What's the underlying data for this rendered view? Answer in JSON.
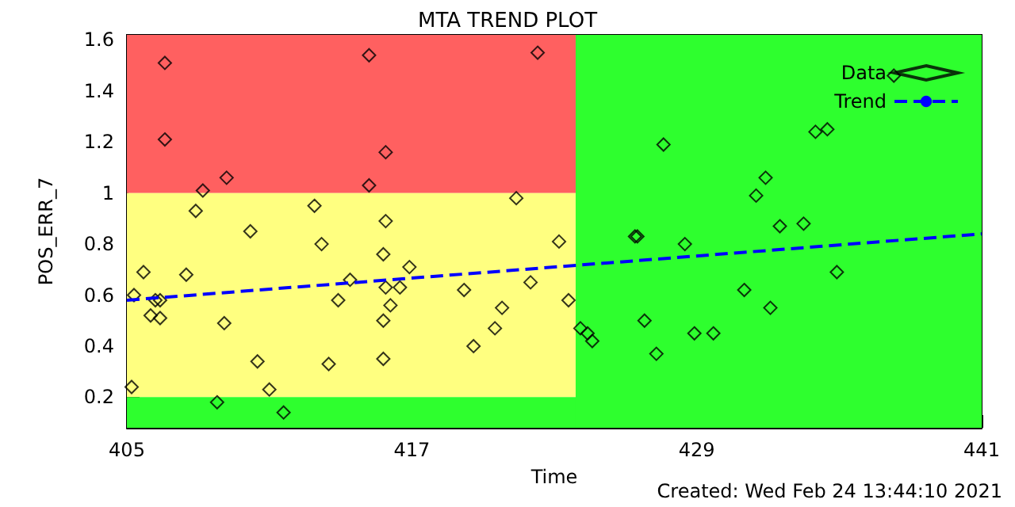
{
  "chart_data": {
    "type": "scatter",
    "title": "MTA TREND PLOT",
    "xlabel": "Time",
    "ylabel": "POS_ERR_7",
    "annotations": [
      "Created: Wed Feb 24 13:44:10 2021"
    ],
    "xlim": [
      405,
      441
    ],
    "xticks": [
      405,
      417,
      429,
      441
    ],
    "ylim": [
      0.08,
      1.62
    ],
    "yticks": [
      0.2,
      0.4,
      0.6,
      0.8,
      1.0,
      1.2,
      1.4,
      1.6
    ],
    "grid": false,
    "legend": "top right",
    "bands": [
      {
        "axis": "y",
        "from": 1.0,
        "to": 1.62,
        "color": "#ff6060"
      },
      {
        "axis": "y",
        "from": 0.2,
        "to": 1.0,
        "color": "#ffff80"
      },
      {
        "axis": "y",
        "from": 0.08,
        "to": 0.2,
        "color": "#2eff2e"
      },
      {
        "axis": "x",
        "from": 423.9,
        "to": 441,
        "color": "#2eff2e"
      }
    ],
    "series": [
      {
        "name": "Data",
        "marker": "diamond",
        "color": "#000000",
        "x": [
          406.6,
          406.6,
          408.2,
          409.2,
          407.9,
          412.9,
          415.2,
          415.9,
          415.2,
          415.9,
          422.3,
          421.4,
          410.2,
          413.2,
          423.2,
          415.8,
          405.7,
          407.5,
          416.9,
          414.4,
          415.9,
          416.5,
          419.2,
          422.0,
          405.3,
          406.2,
          406.4,
          413.9,
          416.1,
          423.6,
          420.8,
          406.0,
          406.4,
          415.8,
          409.1,
          420.5,
          419.6,
          410.5,
          413.5,
          415.8,
          424.1,
          405.2,
          411.0,
          408.8,
          411.6,
          437.3,
          427.6,
          434.0,
          434.5,
          431.9,
          431.5,
          432.5,
          433.5,
          426.4,
          426.5,
          428.5,
          434.9,
          431.0,
          432.1,
          424.4,
          424.6,
          426.8,
          428.9,
          429.7,
          427.3
        ],
        "values": [
          1.51,
          1.21,
          1.01,
          1.06,
          0.93,
          0.95,
          1.54,
          1.16,
          1.03,
          0.89,
          1.55,
          0.98,
          0.85,
          0.8,
          0.81,
          0.76,
          0.69,
          0.68,
          0.71,
          0.66,
          0.63,
          0.63,
          0.62,
          0.65,
          0.6,
          0.58,
          0.58,
          0.58,
          0.56,
          0.58,
          0.55,
          0.52,
          0.51,
          0.5,
          0.49,
          0.47,
          0.4,
          0.34,
          0.33,
          0.35,
          0.47,
          0.24,
          0.23,
          0.18,
          0.14,
          1.46,
          1.19,
          1.24,
          1.25,
          1.06,
          0.99,
          0.87,
          0.88,
          0.83,
          0.83,
          0.8,
          0.69,
          0.62,
          0.55,
          0.45,
          0.42,
          0.5,
          0.45,
          0.45,
          0.37
        ]
      },
      {
        "name": "Trend",
        "type": "line",
        "marker": "none",
        "color": "#0000ff",
        "line_style": "dashed",
        "x": [
          405,
          441
        ],
        "values": [
          0.58,
          0.84
        ]
      }
    ]
  }
}
